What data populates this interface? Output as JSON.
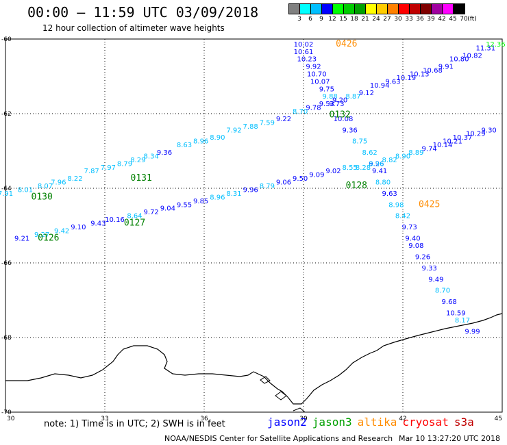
{
  "header": {
    "title": "00:00 – 11:59 UTC 03/09/2018",
    "subtitle": "12 hour collection of altimeter wave heights"
  },
  "colorbar": {
    "colors": [
      "#808080",
      "#00ffff",
      "#00bfff",
      "#0000ff",
      "#00ff00",
      "#00cc00",
      "#00a000",
      "#ffff00",
      "#ffcc00",
      "#ff8000",
      "#ff0000",
      "#c00000",
      "#800000",
      "#a000a0",
      "#ff00ff",
      "#000000"
    ],
    "labels": [
      "3",
      "6",
      "9",
      "12",
      "15",
      "18",
      "21",
      "24",
      "27",
      "30",
      "33",
      "36",
      "39",
      "42",
      "45",
      "70",
      "(ft)"
    ]
  },
  "map": {
    "lon_range": [
      30,
      45
    ],
    "lat_range": [
      -60,
      -70
    ],
    "lon_ticks": [
      "30",
      "33",
      "36",
      "39",
      "42",
      "45"
    ],
    "lat_ticks": [
      "-60",
      "-62",
      "-64",
      "-66",
      "-68",
      "-70"
    ],
    "gridlines": true,
    "coastline": "antarctica"
  },
  "passes": [
    {
      "id": "0426",
      "satellite": "altika",
      "color": "#ff8c00",
      "lon": 40.3,
      "lat": -60.2
    },
    {
      "id": "0425",
      "satellite": "altika",
      "color": "#ff8c00",
      "lon": 42.8,
      "lat": -64.5
    },
    {
      "id": "0132",
      "satellite": "jason3",
      "color": "#008000",
      "lon": 40.1,
      "lat": -62.1
    },
    {
      "id": "0131",
      "satellite": "jason3",
      "color": "#008000",
      "lon": 34.1,
      "lat": -63.8
    },
    {
      "id": "0130",
      "satellite": "jason3",
      "color": "#008000",
      "lon": 31.1,
      "lat": -64.3
    },
    {
      "id": "0128",
      "satellite": "jason3",
      "color": "#008000",
      "lon": 40.6,
      "lat": -64.0
    },
    {
      "id": "0127",
      "satellite": "jason3",
      "color": "#008000",
      "lon": 33.9,
      "lat": -65.0
    },
    {
      "id": "0126",
      "satellite": "jason3",
      "color": "#008000",
      "lon": 31.3,
      "lat": -65.4
    }
  ],
  "tracks": [
    {
      "name": "track-descending-a",
      "points": [
        {
          "lon": 39.0,
          "lat": -60.2,
          "v": "10.02",
          "c": "#0000ff"
        },
        {
          "lon": 39.0,
          "lat": -60.4,
          "v": "10.61",
          "c": "#0000ff"
        },
        {
          "lon": 39.1,
          "lat": -60.6,
          "v": "10.23",
          "c": "#0000ff"
        },
        {
          "lon": 39.3,
          "lat": -60.8,
          "v": "9.92",
          "c": "#0000ff"
        },
        {
          "lon": 39.4,
          "lat": -61.0,
          "v": "10.70",
          "c": "#0000ff"
        },
        {
          "lon": 39.5,
          "lat": -61.2,
          "v": "10.07",
          "c": "#0000ff"
        },
        {
          "lon": 39.7,
          "lat": -61.4,
          "v": "9.75",
          "c": "#0000ff"
        },
        {
          "lon": 39.8,
          "lat": -61.6,
          "v": "9.88",
          "c": "#00bfff"
        },
        {
          "lon": 40.0,
          "lat": -61.8,
          "v": "9.73",
          "c": "#0000ff"
        },
        {
          "lon": 40.2,
          "lat": -62.2,
          "v": "10.08",
          "c": "#0000ff"
        },
        {
          "lon": 40.4,
          "lat": -62.5,
          "v": "9.36",
          "c": "#0000ff"
        },
        {
          "lon": 40.7,
          "lat": -62.8,
          "v": "8.75",
          "c": "#00bfff"
        },
        {
          "lon": 41.0,
          "lat": -63.1,
          "v": "8.62",
          "c": "#00bfff"
        },
        {
          "lon": 41.2,
          "lat": -63.4,
          "v": "9.26",
          "c": "#0000ff"
        },
        {
          "lon": 41.3,
          "lat": -63.6,
          "v": "9.41",
          "c": "#0000ff"
        },
        {
          "lon": 41.4,
          "lat": -63.9,
          "v": "8.80",
          "c": "#00bfff"
        },
        {
          "lon": 41.6,
          "lat": -64.2,
          "v": "9.63",
          "c": "#0000ff"
        },
        {
          "lon": 41.8,
          "lat": -64.5,
          "v": "8.98",
          "c": "#00bfff"
        },
        {
          "lon": 42.0,
          "lat": -64.8,
          "v": "8.42",
          "c": "#00bfff"
        },
        {
          "lon": 42.2,
          "lat": -65.1,
          "v": "9.73",
          "c": "#0000ff"
        },
        {
          "lon": 42.3,
          "lat": -65.4,
          "v": "9.40",
          "c": "#0000ff"
        },
        {
          "lon": 42.4,
          "lat": -65.6,
          "v": "9.08",
          "c": "#0000ff"
        },
        {
          "lon": 42.6,
          "lat": -65.9,
          "v": "9.26",
          "c": "#0000ff"
        },
        {
          "lon": 42.8,
          "lat": -66.2,
          "v": "9.33",
          "c": "#0000ff"
        },
        {
          "lon": 43.0,
          "lat": -66.5,
          "v": "9.49",
          "c": "#0000ff"
        },
        {
          "lon": 43.2,
          "lat": -66.8,
          "v": "8.70",
          "c": "#00bfff"
        },
        {
          "lon": 43.4,
          "lat": -67.1,
          "v": "9.68",
          "c": "#0000ff"
        },
        {
          "lon": 43.6,
          "lat": -67.4,
          "v": "10.59",
          "c": "#0000ff"
        },
        {
          "lon": 43.8,
          "lat": -67.6,
          "v": "8.17",
          "c": "#00bfff"
        },
        {
          "lon": 44.1,
          "lat": -67.9,
          "v": "9.99",
          "c": "#0000ff"
        }
      ]
    },
    {
      "name": "track-ascending-upper",
      "points": [
        {
          "lon": 30.0,
          "lat": -64.2,
          "v": "7.91",
          "c": "#00bfff"
        },
        {
          "lon": 30.6,
          "lat": -64.1,
          "v": "8.01",
          "c": "#00bfff"
        },
        {
          "lon": 31.2,
          "lat": -64.0,
          "v": "8.07",
          "c": "#00bfff"
        },
        {
          "lon": 31.6,
          "lat": -63.9,
          "v": "7.96",
          "c": "#00bfff"
        },
        {
          "lon": 32.1,
          "lat": -63.8,
          "v": "8.22",
          "c": "#00bfff"
        },
        {
          "lon": 32.6,
          "lat": -63.6,
          "v": "7.87",
          "c": "#00bfff"
        },
        {
          "lon": 33.1,
          "lat": -63.5,
          "v": "7.97",
          "c": "#00bfff"
        },
        {
          "lon": 33.6,
          "lat": -63.4,
          "v": "8.79",
          "c": "#00bfff"
        },
        {
          "lon": 34.0,
          "lat": -63.3,
          "v": "8.29",
          "c": "#00bfff"
        },
        {
          "lon": 34.4,
          "lat": -63.2,
          "v": "8.34",
          "c": "#00bfff"
        },
        {
          "lon": 34.8,
          "lat": -63.1,
          "v": "9.36",
          "c": "#0000ff"
        },
        {
          "lon": 35.4,
          "lat": -62.9,
          "v": "8.63",
          "c": "#00bfff"
        },
        {
          "lon": 35.9,
          "lat": -62.8,
          "v": "8.96",
          "c": "#00bfff"
        },
        {
          "lon": 36.4,
          "lat": -62.7,
          "v": "8.90",
          "c": "#00bfff"
        },
        {
          "lon": 36.9,
          "lat": -62.5,
          "v": "7.92",
          "c": "#00bfff"
        },
        {
          "lon": 37.4,
          "lat": -62.4,
          "v": "7.88",
          "c": "#00bfff"
        },
        {
          "lon": 37.9,
          "lat": -62.3,
          "v": "7.59",
          "c": "#00bfff"
        },
        {
          "lon": 38.4,
          "lat": -62.2,
          "v": "9.22",
          "c": "#0000ff"
        },
        {
          "lon": 38.9,
          "lat": -62.0,
          "v": "8.70",
          "c": "#00bfff"
        },
        {
          "lon": 39.3,
          "lat": -61.9,
          "v": "9.78",
          "c": "#0000ff"
        },
        {
          "lon": 39.7,
          "lat": -61.8,
          "v": "9.53",
          "c": "#0000ff"
        },
        {
          "lon": 40.1,
          "lat": -61.7,
          "v": "9.20",
          "c": "#0000ff"
        },
        {
          "lon": 40.5,
          "lat": -61.6,
          "v": "8.87",
          "c": "#00bfff"
        },
        {
          "lon": 40.9,
          "lat": -61.5,
          "v": "9.12",
          "c": "#0000ff"
        },
        {
          "lon": 41.3,
          "lat": -61.3,
          "v": "10.94",
          "c": "#0000ff"
        },
        {
          "lon": 41.7,
          "lat": -61.2,
          "v": "9.63",
          "c": "#0000ff"
        },
        {
          "lon": 42.1,
          "lat": -61.1,
          "v": "10.19",
          "c": "#0000ff"
        },
        {
          "lon": 42.5,
          "lat": -61.0,
          "v": "10.13",
          "c": "#0000ff"
        },
        {
          "lon": 42.9,
          "lat": -60.9,
          "v": "10.68",
          "c": "#0000ff"
        },
        {
          "lon": 43.3,
          "lat": -60.8,
          "v": "9.91",
          "c": "#0000ff"
        },
        {
          "lon": 43.7,
          "lat": -60.6,
          "v": "10.80",
          "c": "#0000ff"
        },
        {
          "lon": 44.1,
          "lat": -60.5,
          "v": "10.82",
          "c": "#0000ff"
        },
        {
          "lon": 44.5,
          "lat": -60.3,
          "v": "11.31",
          "c": "#0000ff"
        },
        {
          "lon": 44.8,
          "lat": -60.2,
          "v": "12.36",
          "c": "#00ff00"
        }
      ]
    },
    {
      "name": "track-ascending-lower",
      "points": [
        {
          "lon": 30.5,
          "lat": -65.4,
          "v": "9.21",
          "c": "#0000ff"
        },
        {
          "lon": 31.1,
          "lat": -65.3,
          "v": "9.27",
          "c": "#00bfff"
        },
        {
          "lon": 31.7,
          "lat": -65.2,
          "v": "9.42",
          "c": "#00bfff"
        },
        {
          "lon": 32.2,
          "lat": -65.1,
          "v": "9.10",
          "c": "#0000ff"
        },
        {
          "lon": 32.8,
          "lat": -65.0,
          "v": "9.43",
          "c": "#0000ff"
        },
        {
          "lon": 33.3,
          "lat": -64.9,
          "v": "10.16",
          "c": "#0000ff"
        },
        {
          "lon": 33.9,
          "lat": -64.8,
          "v": "8.64",
          "c": "#00bfff"
        },
        {
          "lon": 34.4,
          "lat": -64.7,
          "v": "9.72",
          "c": "#0000ff"
        },
        {
          "lon": 34.9,
          "lat": -64.6,
          "v": "9.04",
          "c": "#0000ff"
        },
        {
          "lon": 35.4,
          "lat": -64.5,
          "v": "9.55",
          "c": "#0000ff"
        },
        {
          "lon": 35.9,
          "lat": -64.4,
          "v": "9.85",
          "c": "#0000ff"
        },
        {
          "lon": 36.4,
          "lat": -64.3,
          "v": "8.96",
          "c": "#00bfff"
        },
        {
          "lon": 36.9,
          "lat": -64.2,
          "v": "8.31",
          "c": "#00bfff"
        },
        {
          "lon": 37.4,
          "lat": -64.1,
          "v": "9.96",
          "c": "#0000ff"
        },
        {
          "lon": 37.9,
          "lat": -64.0,
          "v": "8.79",
          "c": "#00bfff"
        },
        {
          "lon": 38.4,
          "lat": -63.9,
          "v": "9.06",
          "c": "#0000ff"
        },
        {
          "lon": 38.9,
          "lat": -63.8,
          "v": "9.50",
          "c": "#0000ff"
        },
        {
          "lon": 39.4,
          "lat": -63.7,
          "v": "9.09",
          "c": "#0000ff"
        },
        {
          "lon": 39.9,
          "lat": -63.6,
          "v": "9.02",
          "c": "#0000ff"
        },
        {
          "lon": 40.4,
          "lat": -63.5,
          "v": "8.55",
          "c": "#00bfff"
        },
        {
          "lon": 40.8,
          "lat": -63.5,
          "v": "8.28",
          "c": "#00bfff"
        },
        {
          "lon": 41.2,
          "lat": -63.4,
          "v": "8.96",
          "c": "#00bfff"
        },
        {
          "lon": 41.6,
          "lat": -63.3,
          "v": "8.82",
          "c": "#00bfff"
        },
        {
          "lon": 42.0,
          "lat": -63.2,
          "v": "8.90",
          "c": "#00bfff"
        },
        {
          "lon": 42.4,
          "lat": -63.1,
          "v": "8.89",
          "c": "#00bfff"
        },
        {
          "lon": 42.8,
          "lat": -63.0,
          "v": "9.74",
          "c": "#0000ff"
        },
        {
          "lon": 43.2,
          "lat": -62.9,
          "v": "10.14",
          "c": "#0000ff"
        },
        {
          "lon": 43.5,
          "lat": -62.8,
          "v": "10.21",
          "c": "#0000ff"
        },
        {
          "lon": 43.8,
          "lat": -62.7,
          "v": "10.37",
          "c": "#0000ff"
        },
        {
          "lon": 44.2,
          "lat": -62.6,
          "v": "10.29",
          "c": "#0000ff"
        },
        {
          "lon": 44.6,
          "lat": -62.5,
          "v": "9.30",
          "c": "#0000ff"
        }
      ]
    }
  ],
  "footer": {
    "note": "note: 1) Time is in UTC; 2) SWH is in feet",
    "legend": [
      {
        "name": "jason2",
        "color": "#0000ff"
      },
      {
        "name": "jason3",
        "color": "#00a000"
      },
      {
        "name": "altika",
        "color": "#ff8c00"
      },
      {
        "name": "cryosat",
        "color": "#ff0000"
      },
      {
        "name": "s3a",
        "color": "#c00000"
      }
    ],
    "credit": "NOAA/NESDIS Center for Satellite Applications and Research",
    "timestamp": "Mar 10 13:27:20 UTC 2018"
  }
}
